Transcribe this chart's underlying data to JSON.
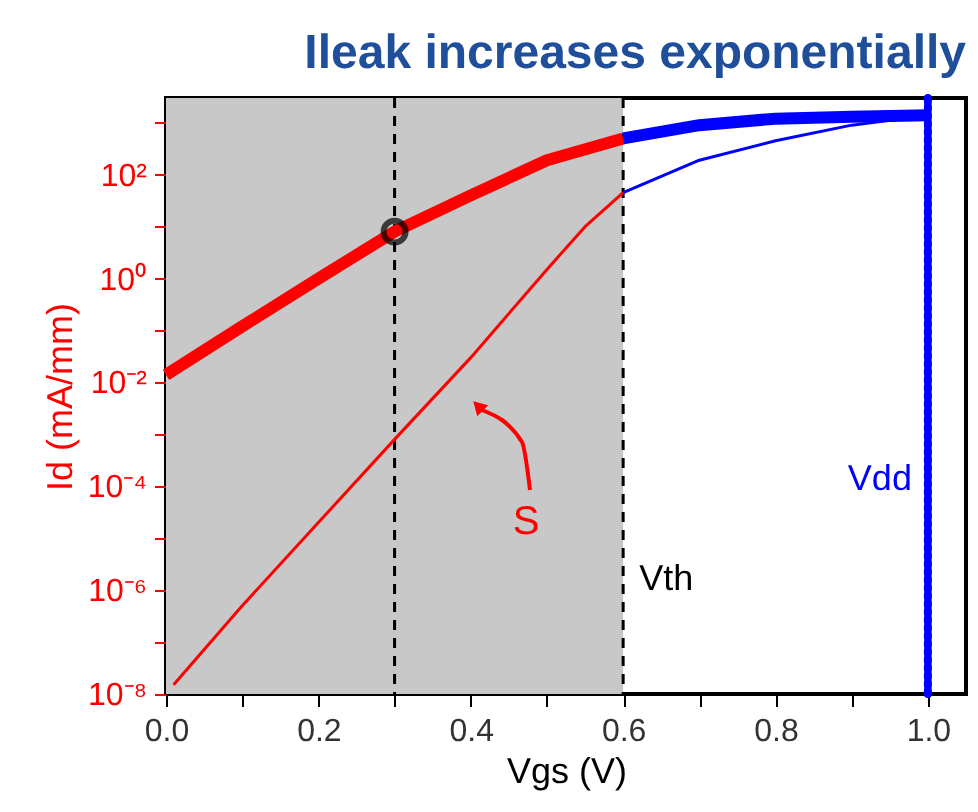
{
  "chart_data": {
    "type": "line",
    "title": "Ileak increases exponentially",
    "xlabel": "Vgs (V)",
    "ylabel": "Id (mA/mm)",
    "log": true,
    "grid": false,
    "line_style": "solid",
    "xlim": [
      0,
      1.05
    ],
    "ylim": [
      1e-08,
      3000
    ],
    "xticks": [
      {
        "value": 0,
        "label": "0.0"
      },
      {
        "value": 0.1,
        "label": null
      },
      {
        "value": 0.2,
        "label": "0.2"
      },
      {
        "value": 0.3,
        "label": null
      },
      {
        "value": 0.4,
        "label": "0.4"
      },
      {
        "value": 0.5,
        "label": null
      },
      {
        "value": 0.6,
        "label": "0.6"
      },
      {
        "value": 0.7,
        "label": null
      },
      {
        "value": 0.8,
        "label": "0.8"
      },
      {
        "value": 0.9,
        "label": null
      },
      {
        "value": 1.0,
        "label": "1.0"
      }
    ],
    "yticks": [
      {
        "value": 1e-08,
        "label": "10⁻⁸"
      },
      {
        "value": 1e-07,
        "label": null
      },
      {
        "value": 1e-06,
        "label": "10⁻⁶"
      },
      {
        "value": 1e-05,
        "label": null
      },
      {
        "value": 0.0001,
        "label": "10⁻⁴"
      },
      {
        "value": 0.001,
        "label": null
      },
      {
        "value": 0.01,
        "label": "10⁻²"
      },
      {
        "value": 0.1,
        "label": null
      },
      {
        "value": 1,
        "label": "10⁰"
      },
      {
        "value": 10,
        "label": null
      },
      {
        "value": 100,
        "label": "10²"
      },
      {
        "value": 1000,
        "label": null
      }
    ],
    "series": [
      {
        "color": "#ff0000",
        "x": [
          0,
          0.1,
          0.2,
          0.3,
          0.4,
          0.5,
          0.6
        ],
        "values": [
          0.014,
          0.12,
          1,
          8,
          40,
          190,
          500
        ]
      },
      {
        "color": "#0000ff",
        "x": [
          0.6,
          0.7,
          0.8,
          0.9,
          1.0
        ],
        "values": [
          500,
          900,
          1200,
          1300,
          1400
        ]
      },
      {
        "color": "#ff0000",
        "x": [
          0.01,
          0.1,
          0.2,
          0.3,
          0.4,
          0.5,
          0.55,
          0.6
        ],
        "values": [
          1.5e-08,
          5e-07,
          2e-05,
          0.0008,
          0.03,
          1.5,
          10,
          45
        ]
      },
      {
        "color": "#0000ff",
        "x": [
          0.6,
          0.7,
          0.8,
          0.9,
          1.0
        ],
        "values": [
          45,
          190,
          450,
          900,
          1400
        ]
      },
      {
        "type": "scatter",
        "marker": "circle",
        "color": "#000000",
        "x": [
          0.3
        ],
        "values": [
          8
        ]
      }
    ],
    "bands": [
      {
        "axis": "x",
        "from": 0,
        "to": 0.6,
        "color": "#c8c8c8"
      }
    ],
    "ref_lines": [
      {
        "axis": "x",
        "value": 0.3,
        "line_style": "dashed",
        "color": "#000000"
      },
      {
        "axis": "x",
        "value": 0.6,
        "label": "Vth",
        "line_style": "dashed",
        "color": "#000000"
      },
      {
        "axis": "x",
        "value": 1.0,
        "label": "Vdd",
        "line_style": "dotted",
        "color": "#0000ff"
      }
    ],
    "annotations": [
      "S"
    ]
  }
}
